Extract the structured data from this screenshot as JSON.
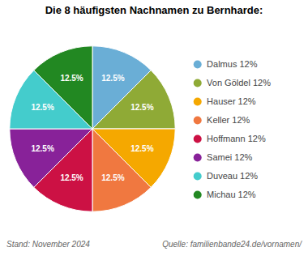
{
  "chart_data": {
    "type": "pie",
    "title": "Die 8 häufigsten Nachnamen zu Bernharde:",
    "categories": [
      "Dalmus 12%",
      "Von Göldel 12%",
      "Hauser 12%",
      "Keller 12%",
      "Hoffmann 12%",
      "Samei 12%",
      "Duveau 12%",
      "Michau 12%"
    ],
    "values": [
      12.5,
      12.5,
      12.5,
      12.5,
      12.5,
      12.5,
      12.5,
      12.5
    ],
    "value_labels": [
      "12.5%",
      "12.5%",
      "12.5%",
      "12.5%",
      "12.5%",
      "12.5%",
      "12.5%",
      "12.5%"
    ],
    "colors": [
      "#6aaed6",
      "#8faa36",
      "#f5a800",
      "#f07840",
      "#cc1144",
      "#882299",
      "#44cccc",
      "#228822"
    ],
    "data_labels": true,
    "legend": "right",
    "annotations": [
      "Stand: November 2024",
      "Quelle: familienbande24.de/vornamen/"
    ]
  }
}
